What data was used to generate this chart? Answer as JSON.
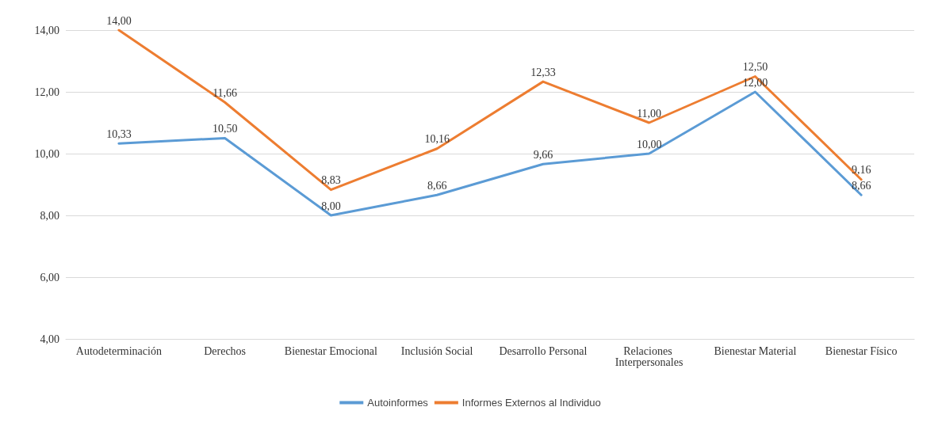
{
  "chart_data": {
    "type": "line",
    "categories": [
      "Autodeterminación",
      "Derechos",
      "Bienestar Emocional",
      "Inclusión Social",
      "Desarrollo Personal",
      "Relaciones Interpersonales",
      "Bienestar Material",
      "Bienestar Físico"
    ],
    "series": [
      {
        "name": "Autoinformes",
        "color": "#5b9bd5",
        "values": [
          10.33,
          10.5,
          8.0,
          8.66,
          9.66,
          10.0,
          12.0,
          8.66
        ],
        "value_labels": [
          "10,33",
          "10,50",
          "8,00",
          "8,66",
          "9,66",
          "10,00",
          "12,00",
          "8,66"
        ]
      },
      {
        "name": "Informes Externos al Individuo",
        "color": "#ed7d31",
        "values": [
          14.0,
          11.66,
          8.83,
          10.16,
          12.33,
          11.0,
          12.5,
          9.16
        ],
        "value_labels": [
          "14,00",
          "11,66",
          "8,83",
          "10,16",
          "12,33",
          "11,00",
          "12,50",
          "9,16"
        ]
      }
    ],
    "ylim": [
      4,
      14
    ],
    "yticks": [
      {
        "value": 4,
        "label": "4,00"
      },
      {
        "value": 6,
        "label": "6,00"
      },
      {
        "value": 8,
        "label": "8,00"
      },
      {
        "value": 10,
        "label": "10,00"
      },
      {
        "value": 12,
        "label": "12,00"
      },
      {
        "value": 14,
        "label": "14,00"
      }
    ],
    "grid": "y",
    "legend": "bottom",
    "marker": "none",
    "line_style": "solid"
  }
}
